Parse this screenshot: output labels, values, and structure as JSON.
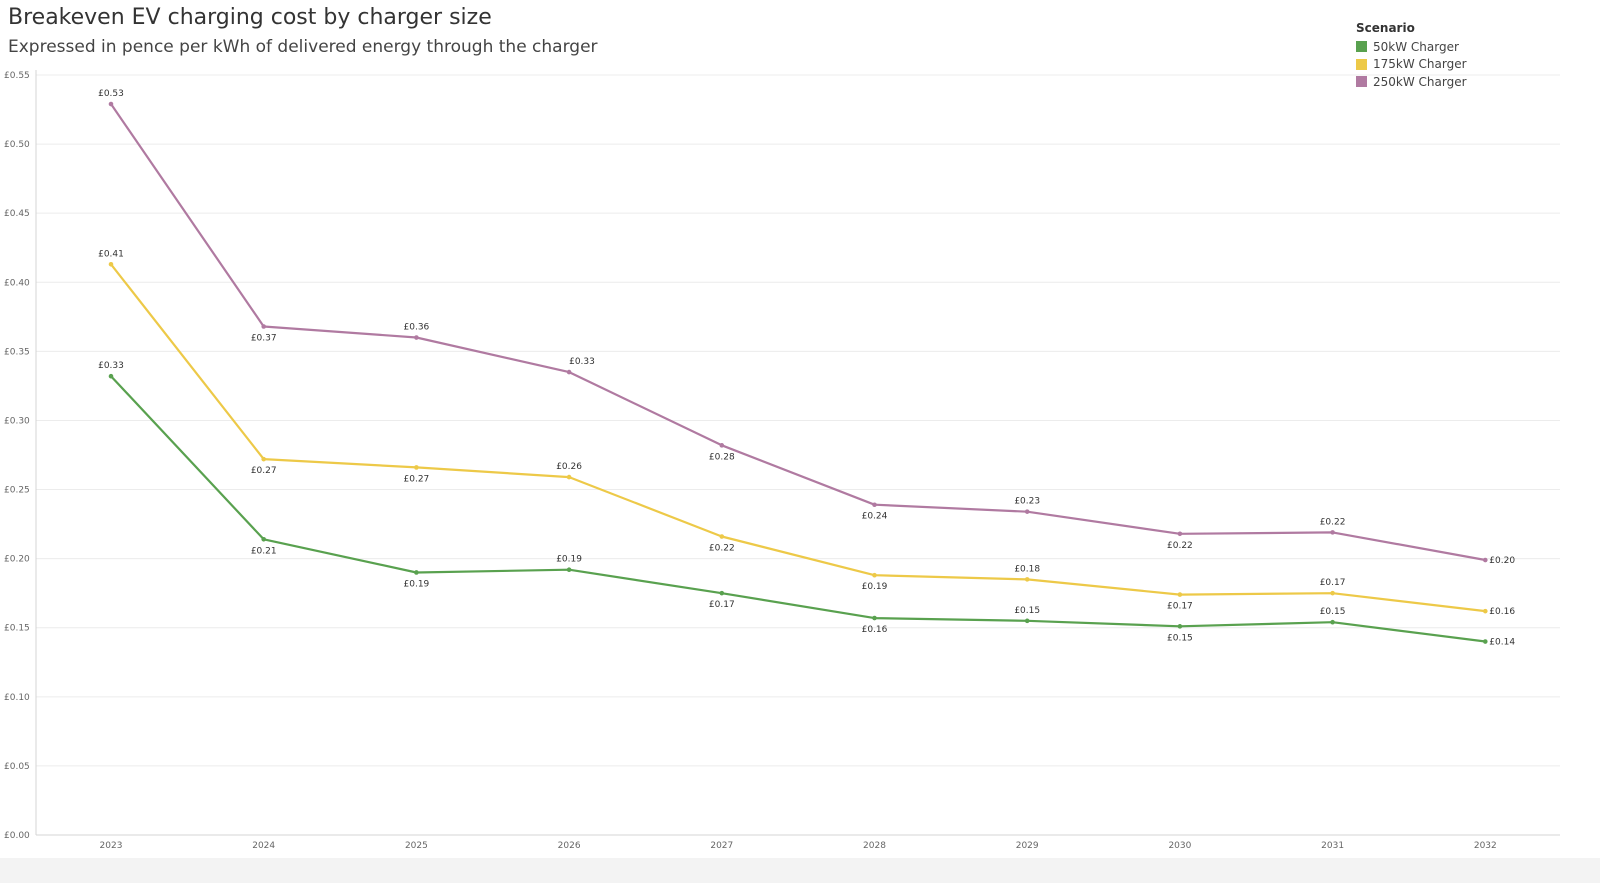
{
  "chart_data": {
    "type": "line",
    "title": "Breakeven EV charging cost by charger size",
    "subtitle": "Expressed in pence per kWh of delivered energy through the charger",
    "xlabel": "",
    "ylabel": "",
    "categories": [
      "2023",
      "2024",
      "2025",
      "2026",
      "2027",
      "2028",
      "2029",
      "2030",
      "2031",
      "2032"
    ],
    "ylim": [
      0,
      0.55
    ],
    "yticks": [
      0,
      0.05,
      0.1,
      0.15,
      0.2,
      0.25,
      0.3,
      0.35,
      0.4,
      0.45,
      0.5,
      0.55
    ],
    "ytick_labels": [
      "£0.00",
      "£0.05",
      "£0.10",
      "£0.15",
      "£0.20",
      "£0.25",
      "£0.30",
      "£0.35",
      "£0.40",
      "£0.45",
      "£0.50",
      "£0.55"
    ],
    "grid": true,
    "legend": {
      "title": "Scenario",
      "placement": "top-right"
    },
    "series": [
      {
        "name": "50kW Charger",
        "color": "#59a14f",
        "values": [
          0.332,
          0.214,
          0.19,
          0.192,
          0.175,
          0.157,
          0.155,
          0.151,
          0.154,
          0.14
        ],
        "labels": [
          "£0.33",
          "£0.21",
          "£0.19",
          "£0.19",
          "£0.17",
          "£0.16",
          "£0.15",
          "£0.15",
          "£0.15",
          "£0.14"
        ],
        "label_pos": [
          "above",
          "below",
          "below",
          "above",
          "below",
          "below",
          "above",
          "below",
          "above",
          "right"
        ]
      },
      {
        "name": "175kW Charger",
        "color": "#edc948",
        "values": [
          0.413,
          0.272,
          0.266,
          0.259,
          0.216,
          0.188,
          0.185,
          0.174,
          0.175,
          0.162
        ],
        "labels": [
          "£0.41",
          "£0.27",
          "£0.27",
          "£0.26",
          "£0.22",
          "£0.19",
          "£0.18",
          "£0.17",
          "£0.17",
          "£0.16"
        ],
        "label_pos": [
          "above",
          "below",
          "below",
          "above",
          "below",
          "below",
          "above",
          "below",
          "above",
          "right"
        ]
      },
      {
        "name": "250kW Charger",
        "color": "#b07aa1",
        "values": [
          0.529,
          0.368,
          0.36,
          0.335,
          0.282,
          0.239,
          0.234,
          0.218,
          0.219,
          0.199
        ],
        "labels": [
          "£0.53",
          "£0.37",
          "£0.36",
          "£0.33",
          "£0.28",
          "£0.24",
          "£0.23",
          "£0.22",
          "£0.22",
          "£0.20"
        ],
        "label_pos": [
          "above",
          "below",
          "above",
          "above-right",
          "below",
          "below",
          "above",
          "below",
          "above",
          "right"
        ]
      }
    ]
  }
}
